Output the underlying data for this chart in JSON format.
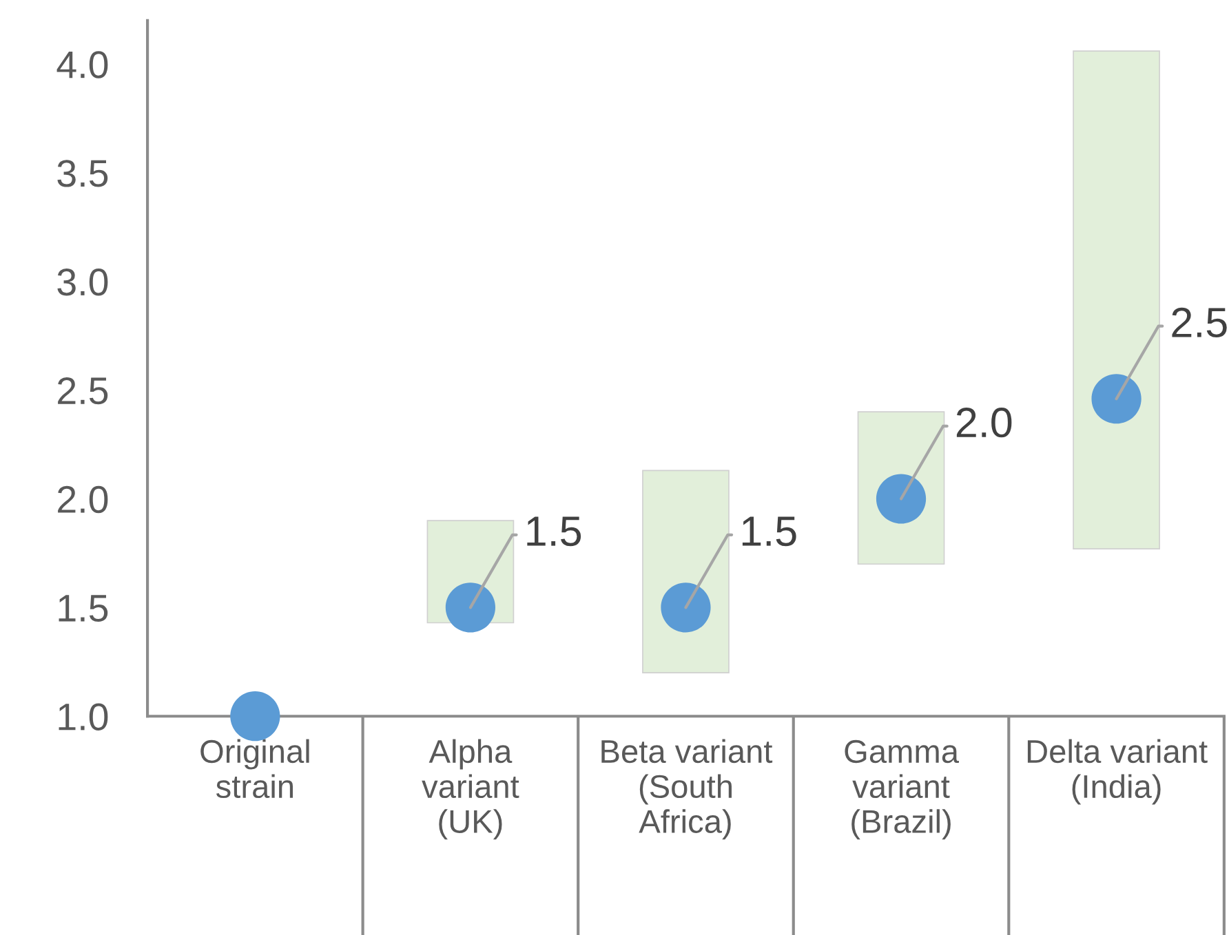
{
  "chart_data": {
    "type": "bar",
    "categories": [
      "Original\nstrain",
      "Alpha\nvariant\n(UK)",
      "Beta variant\n(South\nAfrica)",
      "Gamma\nvariant\n(Brazil)",
      "Delta variant\n(India)"
    ],
    "series": [
      {
        "color": "#e2efda",
        "base": [
          null,
          1.43,
          1.2,
          1.7,
          1.77
        ],
        "values": [
          null,
          0.47,
          0.93,
          0.7,
          2.29
        ]
      },
      {
        "type": "scatter",
        "color": "#5b9bd5",
        "values": [
          1.0,
          1.5,
          1.5,
          2.0,
          2.46
        ],
        "value_labels": [
          null,
          "1.5",
          "1.5",
          "2.0",
          "2.5"
        ]
      }
    ],
    "ylim": [
      1.0,
      4.2
    ],
    "yticks": [
      {
        "value": 1,
        "label": "1.0"
      },
      1.5,
      {
        "value": 2,
        "label": "2.0"
      },
      2.5,
      {
        "value": 3,
        "label": "3.0"
      },
      3.5,
      {
        "value": 4,
        "label": "4.0"
      }
    ],
    "grid": false,
    "legend": false,
    "marker": "circle"
  }
}
